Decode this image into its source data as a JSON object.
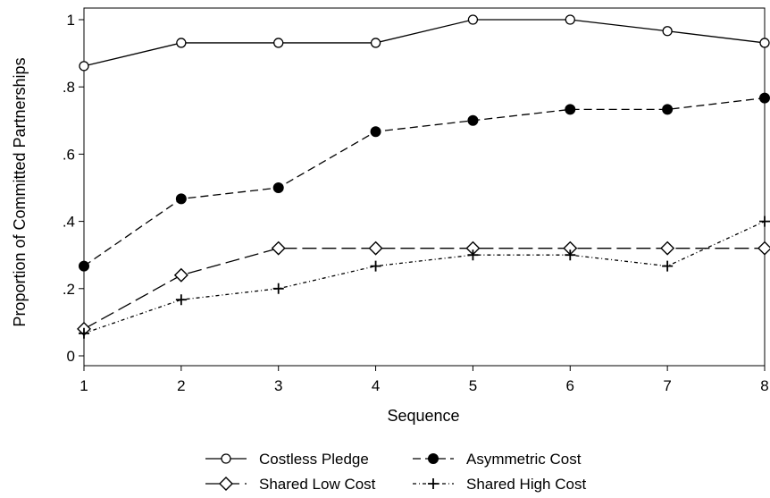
{
  "chart_data": {
    "type": "line",
    "title": "",
    "xlabel": "Sequence",
    "ylabel": "Proportion of Committed Partnerships",
    "x": [
      1,
      2,
      3,
      4,
      5,
      6,
      7,
      8
    ],
    "xticks": [
      "1",
      "2",
      "3",
      "4",
      "5",
      "6",
      "7",
      "8"
    ],
    "xlim": [
      1,
      8
    ],
    "ylim": [
      0,
      1
    ],
    "yticks": [
      {
        "value": 0,
        "label": "0"
      },
      {
        "value": 0.2,
        "label": ".2"
      },
      {
        "value": 0.4,
        "label": ".4"
      },
      {
        "value": 0.6,
        "label": ".6"
      },
      {
        "value": 0.8,
        "label": ".8"
      },
      {
        "value": 1,
        "label": "1"
      }
    ],
    "grid": false,
    "legend_position": "bottom",
    "series": [
      {
        "name": "Costless Pledge",
        "line": "solid",
        "marker": "hollow-circle",
        "color": "#000000",
        "values": [
          0.862,
          0.931,
          0.931,
          0.931,
          1.0,
          1.0,
          0.966,
          0.931
        ]
      },
      {
        "name": "Asymmetric Cost",
        "line": "dashed",
        "marker": "filled-circle",
        "color": "#000000",
        "values": [
          0.267,
          0.467,
          0.5,
          0.667,
          0.7,
          0.733,
          0.733,
          0.767
        ]
      },
      {
        "name": "Shared Low Cost",
        "line": "long-dash",
        "marker": "hollow-diamond",
        "color": "#000000",
        "values": [
          0.08,
          0.24,
          0.32,
          0.32,
          0.32,
          0.32,
          0.32,
          0.32
        ]
      },
      {
        "name": "Shared High Cost",
        "line": "dash-dot",
        "marker": "plus",
        "color": "#000000",
        "values": [
          0.067,
          0.167,
          0.2,
          0.267,
          0.3,
          0.3,
          0.267,
          0.4
        ]
      }
    ]
  }
}
